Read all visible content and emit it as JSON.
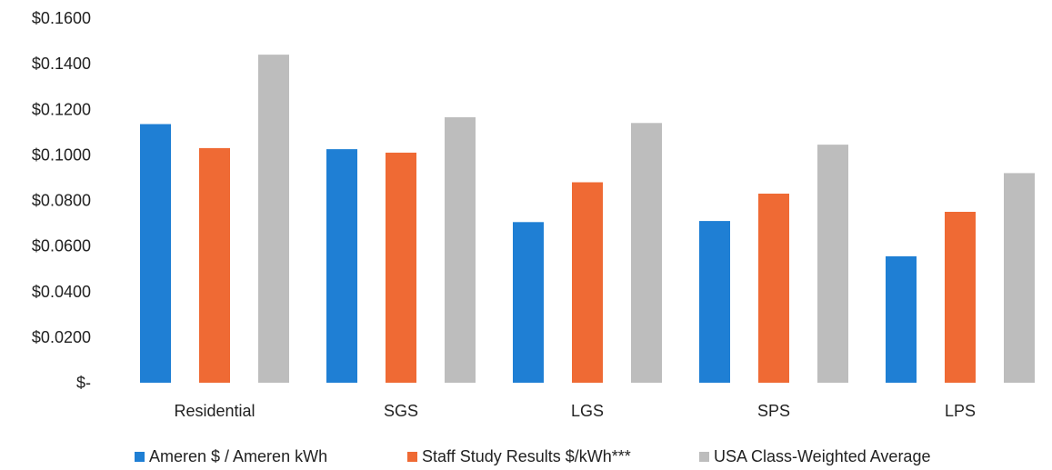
{
  "chart_data": {
    "type": "bar",
    "title": "",
    "xlabel": "",
    "ylabel": "",
    "categories": [
      "Residential",
      "SGS",
      "LGS",
      "SPS",
      "LPS"
    ],
    "yticks": [
      "$0.1600",
      "$0.1400",
      "$0.1200",
      "$0.1000",
      "$0.0800",
      "$0.0600",
      "$0.0400",
      "$0.0200",
      "$-"
    ],
    "ylim": [
      0,
      0.16
    ],
    "grid": false,
    "legend_position": "bottom",
    "series": [
      {
        "name": "Ameren $ / Ameren kWh",
        "color": "#1f7fd4",
        "values": [
          0.1135,
          0.1025,
          0.0705,
          0.071,
          0.0555
        ]
      },
      {
        "name": "Staff Study Results $/kWh***",
        "color": "#ef6a34",
        "values": [
          0.103,
          0.101,
          0.088,
          0.083,
          0.075
        ]
      },
      {
        "name": "USA Class-Weighted Average",
        "color": "#bdbdbd",
        "values": [
          0.144,
          0.1165,
          0.114,
          0.1045,
          0.092
        ]
      }
    ]
  }
}
